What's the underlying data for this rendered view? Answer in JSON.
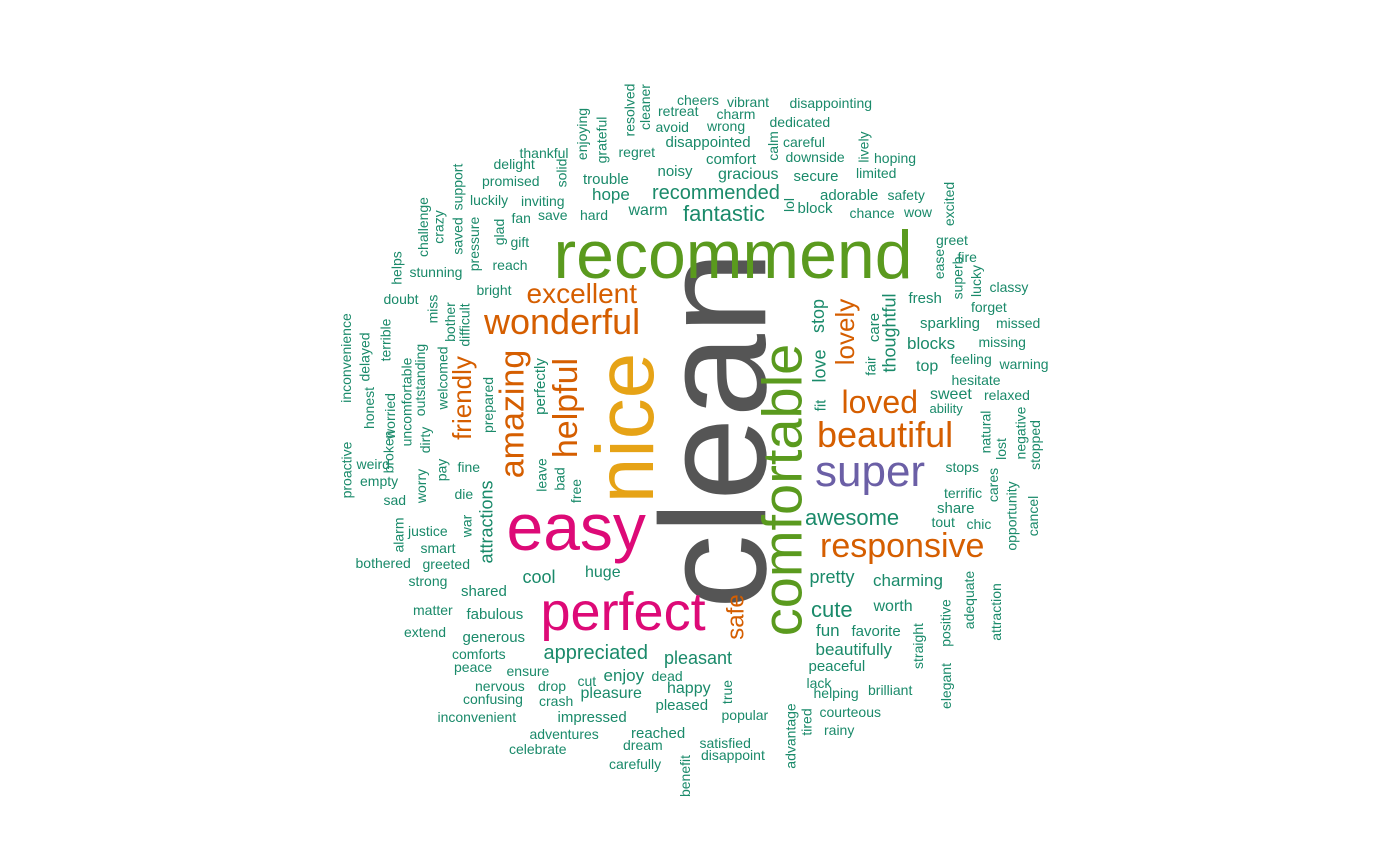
{
  "colors": {
    "clean": "#555555",
    "nice": "#e6a316",
    "recommend": "#5a9a1e",
    "comfortable": "#5a9a1e",
    "easy": "#dd0a77",
    "perfect": "#dd0a77",
    "super": "#6b5fa6",
    "orange": "#d55e00",
    "teal": "#1a8a6a"
  },
  "words": [
    {
      "text": "clean",
      "color": "clean"
    },
    {
      "text": "recommend",
      "color": "recommend"
    },
    {
      "text": "nice",
      "color": "nice"
    },
    {
      "text": "comfortable",
      "color": "comfortable"
    },
    {
      "text": "easy",
      "color": "easy"
    },
    {
      "text": "perfect",
      "color": "perfect"
    },
    {
      "text": "super",
      "color": "super"
    },
    {
      "text": "beautiful",
      "color": "orange"
    },
    {
      "text": "responsive",
      "color": "orange"
    },
    {
      "text": "wonderful",
      "color": "orange"
    },
    {
      "text": "excellent",
      "color": "orange"
    },
    {
      "text": "amazing",
      "color": "orange"
    },
    {
      "text": "helpful",
      "color": "orange"
    },
    {
      "text": "loved",
      "color": "orange"
    },
    {
      "text": "lovely",
      "color": "orange"
    },
    {
      "text": "friendly",
      "color": "orange"
    },
    {
      "text": "safe",
      "color": "orange"
    },
    {
      "text": "awesome",
      "color": "teal"
    },
    {
      "text": "fantastic",
      "color": "teal"
    },
    {
      "text": "recommended",
      "color": "teal"
    },
    {
      "text": "appreciated",
      "color": "teal"
    },
    {
      "text": "cute",
      "color": "teal"
    },
    {
      "text": "pretty",
      "color": "teal"
    },
    {
      "text": "charming",
      "color": "teal"
    },
    {
      "text": "pleasant",
      "color": "teal"
    },
    {
      "text": "beautifully",
      "color": "teal"
    },
    {
      "text": "thoughtful",
      "color": "teal"
    },
    {
      "text": "attractions",
      "color": "teal"
    },
    {
      "text": "cool",
      "color": "teal"
    },
    {
      "text": "huge",
      "color": "teal"
    },
    {
      "text": "enjoy",
      "color": "teal"
    },
    {
      "text": "love",
      "color": "teal"
    },
    {
      "text": "stop",
      "color": "teal"
    },
    {
      "text": "fun",
      "color": "teal"
    },
    {
      "text": "favorite",
      "color": "teal"
    },
    {
      "text": "worth",
      "color": "teal"
    },
    {
      "text": "happy",
      "color": "teal"
    },
    {
      "text": "pleasure",
      "color": "teal"
    },
    {
      "text": "hope",
      "color": "teal"
    },
    {
      "text": "warm",
      "color": "teal"
    },
    {
      "text": "sweet",
      "color": "teal"
    },
    {
      "text": "blocks",
      "color": "teal"
    },
    {
      "text": "sparkling",
      "color": "teal"
    },
    {
      "text": "fresh",
      "color": "teal"
    },
    {
      "text": "top",
      "color": "teal"
    },
    {
      "text": "stops",
      "color": "teal"
    },
    {
      "text": "share",
      "color": "teal"
    },
    {
      "text": "terrific",
      "color": "teal"
    },
    {
      "text": "gracious",
      "color": "teal"
    },
    {
      "text": "secure",
      "color": "teal"
    },
    {
      "text": "comfort",
      "color": "teal"
    },
    {
      "text": "noisy",
      "color": "teal"
    },
    {
      "text": "trouble",
      "color": "teal"
    },
    {
      "text": "disappointed",
      "color": "teal"
    },
    {
      "text": "regret",
      "color": "teal"
    },
    {
      "text": "downside",
      "color": "teal"
    },
    {
      "text": "careful",
      "color": "teal"
    },
    {
      "text": "dedicated",
      "color": "teal"
    },
    {
      "text": "wrong",
      "color": "teal"
    },
    {
      "text": "charm",
      "color": "teal"
    },
    {
      "text": "avoid",
      "color": "teal"
    },
    {
      "text": "retreat",
      "color": "teal"
    },
    {
      "text": "cheers",
      "color": "teal"
    },
    {
      "text": "vibrant",
      "color": "teal"
    },
    {
      "text": "disappointing",
      "color": "teal"
    },
    {
      "text": "hoping",
      "color": "teal"
    },
    {
      "text": "limited",
      "color": "teal"
    },
    {
      "text": "adorable",
      "color": "teal"
    },
    {
      "text": "safety",
      "color": "teal"
    },
    {
      "text": "chance",
      "color": "teal"
    },
    {
      "text": "wow",
      "color": "teal"
    },
    {
      "text": "block",
      "color": "teal"
    },
    {
      "text": "greet",
      "color": "teal"
    },
    {
      "text": "fire",
      "color": "teal"
    },
    {
      "text": "classy",
      "color": "teal"
    },
    {
      "text": "forget",
      "color": "teal"
    },
    {
      "text": "missed",
      "color": "teal"
    },
    {
      "text": "missing",
      "color": "teal"
    },
    {
      "text": "feeling",
      "color": "teal"
    },
    {
      "text": "warning",
      "color": "teal"
    },
    {
      "text": "hesitate",
      "color": "teal"
    },
    {
      "text": "relaxed",
      "color": "teal"
    },
    {
      "text": "ability",
      "color": "teal"
    },
    {
      "text": "tout",
      "color": "teal"
    },
    {
      "text": "chic",
      "color": "teal"
    },
    {
      "text": "delight",
      "color": "teal"
    },
    {
      "text": "thankful",
      "color": "teal"
    },
    {
      "text": "promised",
      "color": "teal"
    },
    {
      "text": "luckily",
      "color": "teal"
    },
    {
      "text": "inviting",
      "color": "teal"
    },
    {
      "text": "fan",
      "color": "teal"
    },
    {
      "text": "save",
      "color": "teal"
    },
    {
      "text": "hard",
      "color": "teal"
    },
    {
      "text": "gift",
      "color": "teal"
    },
    {
      "text": "reach",
      "color": "teal"
    },
    {
      "text": "stunning",
      "color": "teal"
    },
    {
      "text": "bright",
      "color": "teal"
    },
    {
      "text": "doubt",
      "color": "teal"
    },
    {
      "text": "die",
      "color": "teal"
    },
    {
      "text": "fine",
      "color": "teal"
    },
    {
      "text": "pay",
      "color": "teal"
    },
    {
      "text": "weird",
      "color": "teal"
    },
    {
      "text": "empty",
      "color": "teal"
    },
    {
      "text": "sad",
      "color": "teal"
    },
    {
      "text": "justice",
      "color": "teal"
    },
    {
      "text": "smart",
      "color": "teal"
    },
    {
      "text": "bothered",
      "color": "teal"
    },
    {
      "text": "greeted",
      "color": "teal"
    },
    {
      "text": "strong",
      "color": "teal"
    },
    {
      "text": "shared",
      "color": "teal"
    },
    {
      "text": "matter",
      "color": "teal"
    },
    {
      "text": "fabulous",
      "color": "teal"
    },
    {
      "text": "extend",
      "color": "teal"
    },
    {
      "text": "generous",
      "color": "teal"
    },
    {
      "text": "comforts",
      "color": "teal"
    },
    {
      "text": "peace",
      "color": "teal"
    },
    {
      "text": "ensure",
      "color": "teal"
    },
    {
      "text": "nervous",
      "color": "teal"
    },
    {
      "text": "drop",
      "color": "teal"
    },
    {
      "text": "cut",
      "color": "teal"
    },
    {
      "text": "dead",
      "color": "teal"
    },
    {
      "text": "confusing",
      "color": "teal"
    },
    {
      "text": "crash",
      "color": "teal"
    },
    {
      "text": "inconvenient",
      "color": "teal"
    },
    {
      "text": "impressed",
      "color": "teal"
    },
    {
      "text": "pleased",
      "color": "teal"
    },
    {
      "text": "adventures",
      "color": "teal"
    },
    {
      "text": "reached",
      "color": "teal"
    },
    {
      "text": "celebrate",
      "color": "teal"
    },
    {
      "text": "dream",
      "color": "teal"
    },
    {
      "text": "satisfied",
      "color": "teal"
    },
    {
      "text": "disappoint",
      "color": "teal"
    },
    {
      "text": "carefully",
      "color": "teal"
    },
    {
      "text": "popular",
      "color": "teal"
    },
    {
      "text": "peaceful",
      "color": "teal"
    },
    {
      "text": "lack",
      "color": "teal"
    },
    {
      "text": "helping",
      "color": "teal"
    },
    {
      "text": "brilliant",
      "color": "teal"
    },
    {
      "text": "courteous",
      "color": "teal"
    },
    {
      "text": "rainy",
      "color": "teal"
    },
    {
      "text": "leave",
      "color": "teal"
    },
    {
      "text": "bad",
      "color": "teal"
    },
    {
      "text": "free",
      "color": "teal"
    },
    {
      "text": "perfectly",
      "color": "teal"
    },
    {
      "text": "prepared",
      "color": "teal"
    },
    {
      "text": "war",
      "color": "teal"
    },
    {
      "text": "worry",
      "color": "teal"
    },
    {
      "text": "dirty",
      "color": "teal"
    },
    {
      "text": "outstanding",
      "color": "teal"
    },
    {
      "text": "welcomed",
      "color": "teal"
    },
    {
      "text": "difficult",
      "color": "teal"
    },
    {
      "text": "bother",
      "color": "teal"
    },
    {
      "text": "miss",
      "color": "teal"
    },
    {
      "text": "uncomfortable",
      "color": "teal"
    },
    {
      "text": "broken",
      "color": "teal"
    },
    {
      "text": "worried",
      "color": "teal"
    },
    {
      "text": "honest",
      "color": "teal"
    },
    {
      "text": "delayed",
      "color": "teal"
    },
    {
      "text": "terrible",
      "color": "teal"
    },
    {
      "text": "inconvenience",
      "color": "teal"
    },
    {
      "text": "proactive",
      "color": "teal"
    },
    {
      "text": "helps",
      "color": "teal"
    },
    {
      "text": "challenge",
      "color": "teal"
    },
    {
      "text": "crazy",
      "color": "teal"
    },
    {
      "text": "saved",
      "color": "teal"
    },
    {
      "text": "pressure",
      "color": "teal"
    },
    {
      "text": "glad",
      "color": "teal"
    },
    {
      "text": "support",
      "color": "teal"
    },
    {
      "text": "solid",
      "color": "teal"
    },
    {
      "text": "enjoying",
      "color": "teal"
    },
    {
      "text": "grateful",
      "color": "teal"
    },
    {
      "text": "resolved",
      "color": "teal"
    },
    {
      "text": "cleaner",
      "color": "teal"
    },
    {
      "text": "calm",
      "color": "teal"
    },
    {
      "text": "lively",
      "color": "teal"
    },
    {
      "text": "lol",
      "color": "teal"
    },
    {
      "text": "excited",
      "color": "teal"
    },
    {
      "text": "ease",
      "color": "teal"
    },
    {
      "text": "superb",
      "color": "teal"
    },
    {
      "text": "lucky",
      "color": "teal"
    },
    {
      "text": "care",
      "color": "teal"
    },
    {
      "text": "fair",
      "color": "teal"
    },
    {
      "text": "fit",
      "color": "teal"
    },
    {
      "text": "natural",
      "color": "teal"
    },
    {
      "text": "lost",
      "color": "teal"
    },
    {
      "text": "negative",
      "color": "teal"
    },
    {
      "text": "stopped",
      "color": "teal"
    },
    {
      "text": "cares",
      "color": "teal"
    },
    {
      "text": "opportunity",
      "color": "teal"
    },
    {
      "text": "cancel",
      "color": "teal"
    },
    {
      "text": "adequate",
      "color": "teal"
    },
    {
      "text": "attraction",
      "color": "teal"
    },
    {
      "text": "positive",
      "color": "teal"
    },
    {
      "text": "elegant",
      "color": "teal"
    },
    {
      "text": "straight",
      "color": "teal"
    },
    {
      "text": "true",
      "color": "teal"
    },
    {
      "text": "tired",
      "color": "teal"
    },
    {
      "text": "advantage",
      "color": "teal"
    },
    {
      "text": "benefit",
      "color": "teal"
    },
    {
      "text": "alarm",
      "color": "teal"
    }
  ]
}
